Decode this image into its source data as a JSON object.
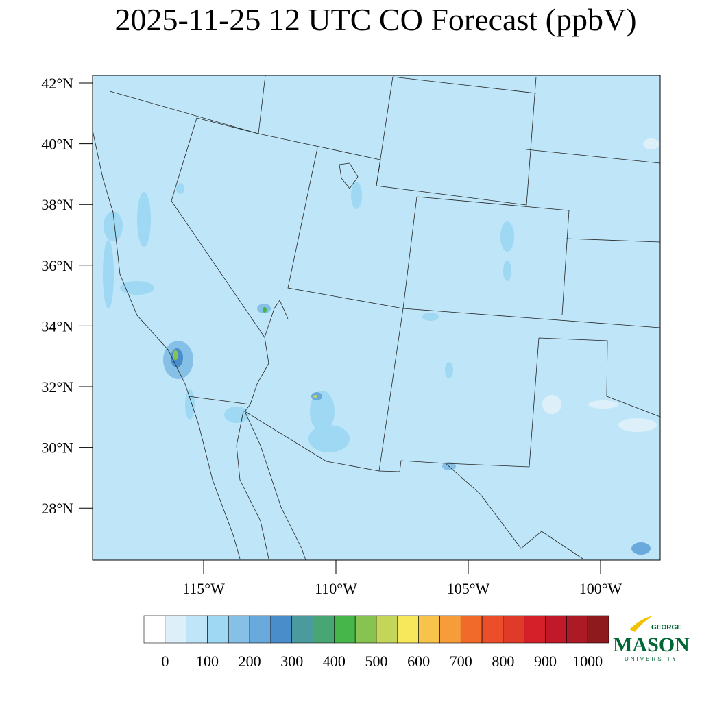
{
  "title": "2025-11-25 12 UTC CO Forecast (ppbV)",
  "map": {
    "lat_ticks": [
      {
        "value": 42,
        "label": "42°N"
      },
      {
        "value": 40,
        "label": "40°N"
      },
      {
        "value": 38,
        "label": "38°N"
      },
      {
        "value": 36,
        "label": "36°N"
      },
      {
        "value": 34,
        "label": "34°N"
      },
      {
        "value": 32,
        "label": "32°N"
      },
      {
        "value": 30,
        "label": "30°N"
      },
      {
        "value": 28,
        "label": "28°N"
      }
    ],
    "lon_ticks": [
      {
        "value": -115,
        "label": "115°W"
      },
      {
        "value": -110,
        "label": "110°W"
      },
      {
        "value": -105,
        "label": "105°W"
      },
      {
        "value": -100,
        "label": "100°W"
      }
    ]
  },
  "colorbar": {
    "colors": [
      "#ffffff",
      "#ddf0fa",
      "#bfe6f8",
      "#9ed8f2",
      "#86c0e6",
      "#6aa9dc",
      "#4a8dcb",
      "#4a9a9e",
      "#48a574",
      "#46b54a",
      "#86c350",
      "#c3d65a",
      "#f6e85a",
      "#f8c34a",
      "#f79c3b",
      "#f26a2a",
      "#ea4e2a",
      "#e03a29",
      "#d52029",
      "#c1182a",
      "#ab1a25",
      "#8e1a1e"
    ],
    "step": 50,
    "labels": [
      0,
      100,
      200,
      300,
      400,
      500,
      600,
      700,
      800,
      900,
      1000
    ]
  },
  "logo": {
    "top": "GEORGE",
    "name": "MASON",
    "bottom": "UNIVERSITY"
  }
}
